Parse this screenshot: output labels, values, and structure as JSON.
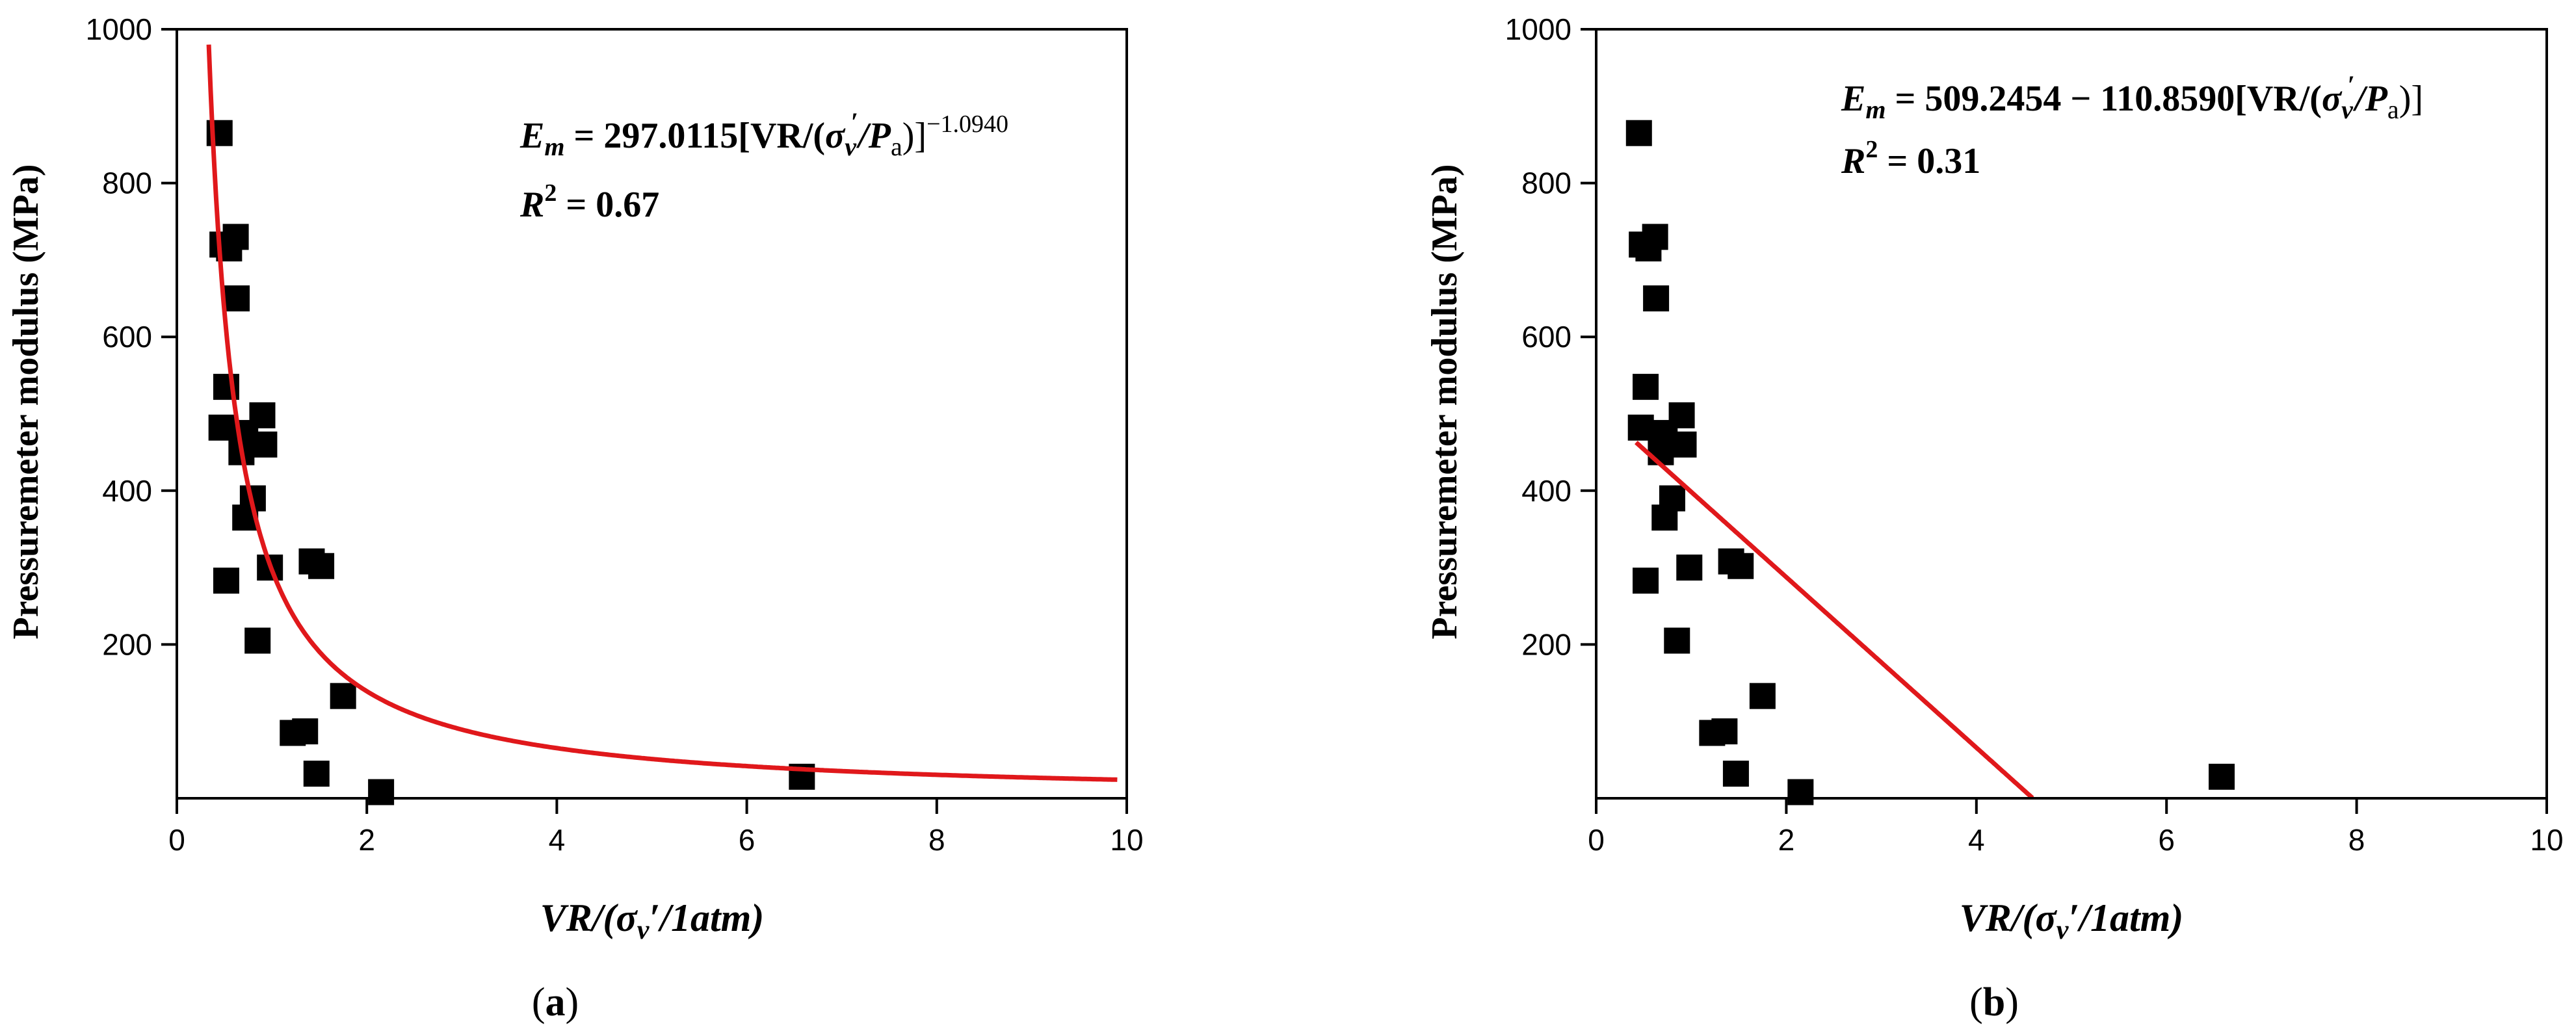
{
  "chart_data": [
    {
      "type": "scatter",
      "panel_label_letter": "a",
      "xlabel_main": "VR/(",
      "xlabel_sigma": "σ",
      "xlabel_sub": "v",
      "xlabel_rest": "′/1atm)",
      "ylabel": "Pressuremeter modulus (MPa)",
      "xlim": [
        0,
        10
      ],
      "ylim": [
        0,
        1000
      ],
      "x_ticks": [
        "0",
        "2",
        "4",
        "6",
        "8",
        "10"
      ],
      "y_ticks": [
        "200",
        "400",
        "600",
        "800",
        "1000"
      ],
      "equation": {
        "lhs_E": "E",
        "lhs_sub": "m",
        "body": " = 297.0115[VR/(",
        "sigma": "σ",
        "sigma_sub": "v",
        "sigma_sup": "′",
        "slash_P": "/P",
        "P_sub": "a",
        "close": ")]",
        "exponent": "−1.0940"
      },
      "r2": {
        "R": "R",
        "sup": "2",
        "value": " = 0.67"
      },
      "points": [
        [
          0.45,
          865
        ],
        [
          0.48,
          720
        ],
        [
          0.55,
          715
        ],
        [
          0.62,
          730
        ],
        [
          0.63,
          650
        ],
        [
          0.52,
          535
        ],
        [
          0.47,
          482
        ],
        [
          0.72,
          475
        ],
        [
          0.68,
          450
        ],
        [
          0.9,
          498
        ],
        [
          0.92,
          460
        ],
        [
          0.8,
          390
        ],
        [
          0.72,
          365
        ],
        [
          0.52,
          283
        ],
        [
          0.98,
          300
        ],
        [
          1.42,
          308
        ],
        [
          1.52,
          302
        ],
        [
          0.85,
          205
        ],
        [
          1.75,
          133
        ],
        [
          1.22,
          85
        ],
        [
          1.35,
          87
        ],
        [
          1.47,
          32
        ],
        [
          2.15,
          8
        ],
        [
          6.58,
          28
        ]
      ],
      "fit": {
        "type": "power",
        "a": 297.0115,
        "b": -1.094,
        "x_range": [
          0.2,
          9.9
        ]
      },
      "colors": {
        "points": "#000000",
        "fit": "#e0181b",
        "axes": "#000000"
      }
    },
    {
      "type": "scatter",
      "panel_label_letter": "b",
      "xlabel_main": "VR/(",
      "xlabel_sigma": "σ",
      "xlabel_sub": "v",
      "xlabel_rest": "′/1atm)",
      "ylabel": "Pressuremeter modulus (MPa)",
      "xlim": [
        0,
        10
      ],
      "ylim": [
        0,
        1000
      ],
      "x_ticks": [
        "0",
        "2",
        "4",
        "6",
        "8",
        "10"
      ],
      "y_ticks": [
        "200",
        "400",
        "600",
        "800",
        "1000"
      ],
      "equation": {
        "lhs_E": "E",
        "lhs_sub": "m",
        "body": " = 509.2454 − 110.8590[VR/(",
        "sigma": "σ",
        "sigma_sub": "v",
        "sigma_sup": "′",
        "slash_P": "/P",
        "P_sub": "a",
        "close": ")]",
        "exponent": ""
      },
      "r2": {
        "R": "R",
        "sup": "2",
        "value": " = 0.31"
      },
      "points": [
        [
          0.45,
          865
        ],
        [
          0.48,
          720
        ],
        [
          0.55,
          715
        ],
        [
          0.62,
          730
        ],
        [
          0.63,
          650
        ],
        [
          0.52,
          535
        ],
        [
          0.47,
          482
        ],
        [
          0.72,
          475
        ],
        [
          0.68,
          450
        ],
        [
          0.9,
          498
        ],
        [
          0.92,
          460
        ],
        [
          0.8,
          390
        ],
        [
          0.72,
          365
        ],
        [
          0.52,
          283
        ],
        [
          0.98,
          300
        ],
        [
          1.42,
          308
        ],
        [
          1.52,
          302
        ],
        [
          0.85,
          205
        ],
        [
          1.75,
          133
        ],
        [
          1.22,
          85
        ],
        [
          1.35,
          87
        ],
        [
          1.47,
          32
        ],
        [
          2.15,
          8
        ],
        [
          6.58,
          28
        ]
      ],
      "fit": {
        "type": "linear",
        "a": 509.2454,
        "b": -110.859,
        "x_range": [
          0.42,
          4.59
        ]
      },
      "colors": {
        "points": "#000000",
        "fit": "#e0181b",
        "axes": "#000000"
      }
    }
  ]
}
